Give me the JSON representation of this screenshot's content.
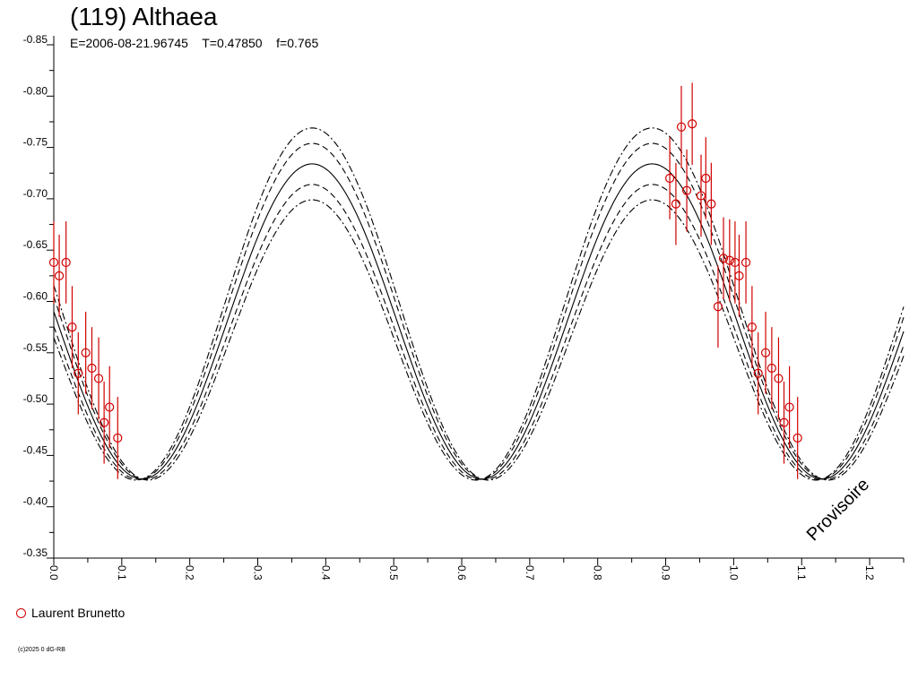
{
  "header": {
    "title": "(119) Althaea",
    "subtitle": "E=2006-08-21.96745    T=0.47850    f=0.765"
  },
  "legend": {
    "label": "Laurent Brunetto",
    "marker_color": "#d00000"
  },
  "footer": {
    "copyright": "(c)2025 0 dG-RB"
  },
  "watermark": "Provisoire",
  "chart_data": {
    "type": "scatter",
    "title": "(119) Althaea",
    "subtitle": "E=2006-08-21.96745    T=0.47850    f=0.765",
    "xlim": [
      0.0,
      1.25
    ],
    "ylim": [
      -0.85,
      -0.35
    ],
    "y_inverted": true,
    "x_ticks": [
      "0.0",
      "0.1",
      "0.2",
      "0.3",
      "0.4",
      "0.5",
      "0.6",
      "0.7",
      "0.8",
      "0.9",
      "1.0",
      "1.1",
      "1.2"
    ],
    "y_ticks": [
      "-0.85",
      "-0.80",
      "-0.75",
      "-0.70",
      "-0.65",
      "-0.60",
      "-0.55",
      "-0.50",
      "-0.45",
      "-0.40",
      "-0.35"
    ],
    "grid": false,
    "legend_position": "bottom-left",
    "series": [
      {
        "name": "Laurent Brunetto",
        "color": "#d00000",
        "marker": "open-circle",
        "points": [
          {
            "x": 0.0,
            "y": -0.638,
            "err": 0.04
          },
          {
            "x": 0.008,
            "y": -0.625,
            "err": 0.04
          },
          {
            "x": 0.018,
            "y": -0.638,
            "err": 0.04
          },
          {
            "x": 0.027,
            "y": -0.575,
            "err": 0.04
          },
          {
            "x": 0.036,
            "y": -0.53,
            "err": 0.04
          },
          {
            "x": 0.047,
            "y": -0.55,
            "err": 0.04
          },
          {
            "x": 0.056,
            "y": -0.535,
            "err": 0.04
          },
          {
            "x": 0.066,
            "y": -0.525,
            "err": 0.04
          },
          {
            "x": 0.074,
            "y": -0.482,
            "err": 0.04
          },
          {
            "x": 0.082,
            "y": -0.497,
            "err": 0.04
          },
          {
            "x": 0.094,
            "y": -0.467,
            "err": 0.04
          },
          {
            "x": 0.906,
            "y": -0.72,
            "err": 0.04
          },
          {
            "x": 0.915,
            "y": -0.695,
            "err": 0.04
          },
          {
            "x": 0.923,
            "y": -0.77,
            "err": 0.04
          },
          {
            "x": 0.931,
            "y": -0.708,
            "err": 0.04
          },
          {
            "x": 0.939,
            "y": -0.773,
            "err": 0.04
          },
          {
            "x": 0.952,
            "y": -0.703,
            "err": 0.04
          },
          {
            "x": 0.959,
            "y": -0.72,
            "err": 0.04
          },
          {
            "x": 0.967,
            "y": -0.695,
            "err": 0.04
          },
          {
            "x": 0.977,
            "y": -0.595,
            "err": 0.04
          },
          {
            "x": 0.985,
            "y": -0.642,
            "err": 0.04
          },
          {
            "x": 0.994,
            "y": -0.64,
            "err": 0.04
          },
          {
            "x": 1.002,
            "y": -0.638,
            "err": 0.04
          },
          {
            "x": 1.008,
            "y": -0.625,
            "err": 0.04
          },
          {
            "x": 1.018,
            "y": -0.638,
            "err": 0.04
          },
          {
            "x": 1.027,
            "y": -0.575,
            "err": 0.04
          },
          {
            "x": 1.036,
            "y": -0.53,
            "err": 0.04
          },
          {
            "x": 1.047,
            "y": -0.55,
            "err": 0.04
          },
          {
            "x": 1.056,
            "y": -0.535,
            "err": 0.04
          },
          {
            "x": 1.066,
            "y": -0.525,
            "err": 0.04
          },
          {
            "x": 1.074,
            "y": -0.482,
            "err": 0.04
          },
          {
            "x": 1.082,
            "y": -0.497,
            "err": 0.04
          },
          {
            "x": 1.094,
            "y": -0.467,
            "err": 0.04
          }
        ]
      }
    ],
    "fit_curves": [
      {
        "style": "solid",
        "offset": 0.0,
        "amplitude": 0.1535,
        "mean": -0.5805,
        "phase_max": 0.38
      },
      {
        "style": "dashed",
        "offset": 0.02,
        "amplitude": 0.1535,
        "mean": -0.5805,
        "phase_max": 0.38
      },
      {
        "style": "dashed",
        "offset": -0.02,
        "amplitude": 0.1535,
        "mean": -0.5805,
        "phase_max": 0.38
      },
      {
        "style": "dashdot",
        "offset": 0.035,
        "amplitude": 0.1535,
        "mean": -0.5805,
        "phase_max": 0.38
      },
      {
        "style": "dashdot",
        "offset": -0.035,
        "amplitude": 0.1535,
        "mean": -0.5805,
        "phase_max": 0.38
      }
    ]
  }
}
